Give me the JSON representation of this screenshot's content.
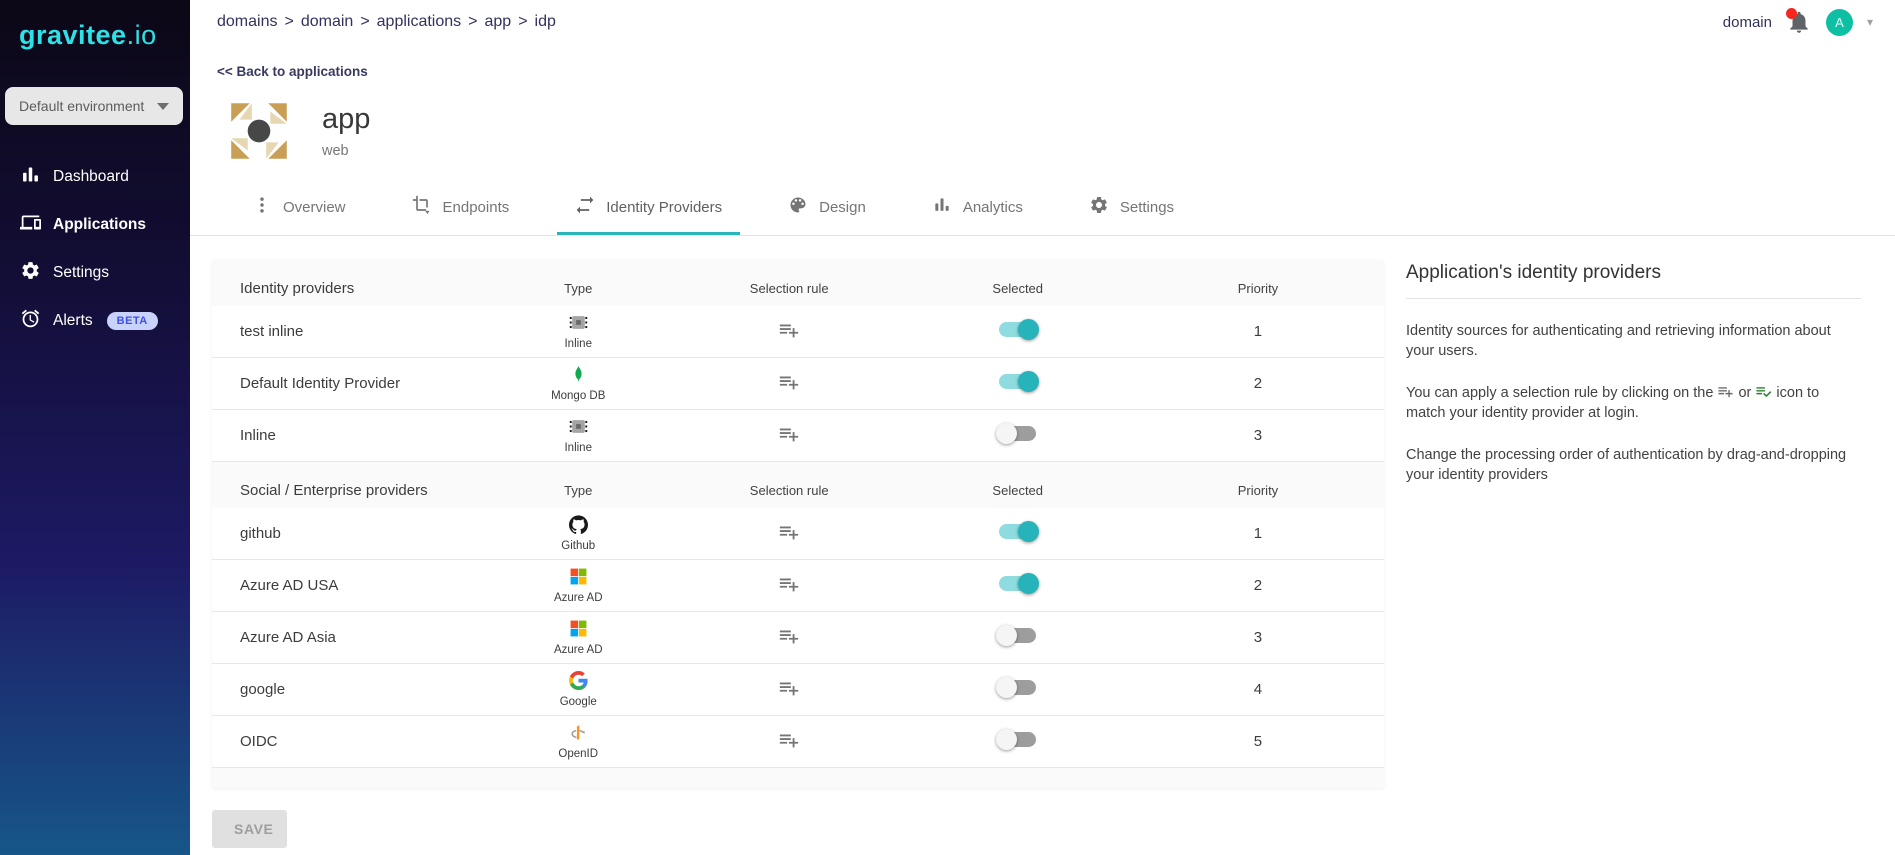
{
  "brand": {
    "logo_main": "gravitee",
    "logo_tld": ".io",
    "accent": "#2ee1e6"
  },
  "topbar": {
    "breadcrumb": [
      "domains",
      "domain",
      "applications",
      "app",
      "idp"
    ],
    "separator": ">",
    "domain_label": "domain",
    "avatar_letter": "A",
    "colors": {
      "notification_dot": "#f8261f",
      "avatar_bg": "#0dbfa3"
    }
  },
  "sidebar": {
    "environment_select": "Default environment",
    "items": [
      {
        "label": "Dashboard",
        "icon": "bar-chart-icon",
        "active": false
      },
      {
        "label": "Applications",
        "icon": "devices-icon",
        "active": true
      },
      {
        "label": "Settings",
        "icon": "gear-icon",
        "active": false
      },
      {
        "label": "Alerts",
        "icon": "alarm-clock-icon",
        "active": false,
        "badge": "BETA"
      }
    ]
  },
  "page": {
    "back_link": "<< Back to applications",
    "app_title": "app",
    "app_subtitle": "web",
    "tabs": [
      {
        "label": "Overview",
        "icon": "more-vert-icon",
        "active": false
      },
      {
        "label": "Endpoints",
        "icon": "crop-icon",
        "active": false
      },
      {
        "label": "Identity Providers",
        "icon": "swap-arrows-icon",
        "active": true
      },
      {
        "label": "Design",
        "icon": "palette-icon",
        "active": false
      },
      {
        "label": "Analytics",
        "icon": "bar-chart-icon",
        "active": false
      },
      {
        "label": "Settings",
        "icon": "gear-icon",
        "active": false
      }
    ],
    "active_tab_color": "#29b5ba"
  },
  "idp_tables": [
    {
      "columns": [
        "Identity providers",
        "Type",
        "Selection rule",
        "Selected",
        "Priority"
      ],
      "rows": [
        {
          "name": "test inline",
          "type_label": "Inline",
          "icon": "inline-icon",
          "selected": true,
          "priority": "1"
        },
        {
          "name": "Default Identity Provider",
          "type_label": "Mongo DB",
          "icon": "mongodb-icon",
          "selected": true,
          "priority": "2"
        },
        {
          "name": "Inline",
          "type_label": "Inline",
          "icon": "inline-icon",
          "selected": false,
          "priority": "3"
        }
      ]
    },
    {
      "columns": [
        "Social / Enterprise providers",
        "Type",
        "Selection rule",
        "Selected",
        "Priority"
      ],
      "rows": [
        {
          "name": "github",
          "type_label": "Github",
          "icon": "github-icon",
          "selected": true,
          "priority": "1"
        },
        {
          "name": "Azure AD USA",
          "type_label": "Azure AD",
          "icon": "azure-ad-icon",
          "selected": true,
          "priority": "2"
        },
        {
          "name": "Azure AD Asia",
          "type_label": "Azure AD",
          "icon": "azure-ad-icon",
          "selected": false,
          "priority": "3"
        },
        {
          "name": "google",
          "type_label": "Google",
          "icon": "google-icon",
          "selected": false,
          "priority": "4"
        },
        {
          "name": "OIDC",
          "type_label": "OpenID",
          "icon": "openid-icon",
          "selected": false,
          "priority": "5"
        }
      ]
    }
  ],
  "selection_rule_icon": "playlist-add-icon",
  "toggle_colors": {
    "on_knob": "#26b3ba",
    "on_track": "#8edce0",
    "off_knob": "#f5f5f5",
    "off_track": "#9d9d9d"
  },
  "side_panel": {
    "title": "Application's identity providers",
    "p1": "Identity sources for authenticating and retrieving information about your users.",
    "p2_before": "You can apply a selection rule by clicking on the",
    "p2_icon1": "playlist-add-icon",
    "p2_or": "or",
    "p2_icon2": "playlist-check-icon",
    "p2_after": "icon to match your identity provider at login.",
    "p3": "Change the processing order of authentication by drag-and-dropping your identity providers"
  },
  "actions": {
    "save_label": "SAVE"
  }
}
